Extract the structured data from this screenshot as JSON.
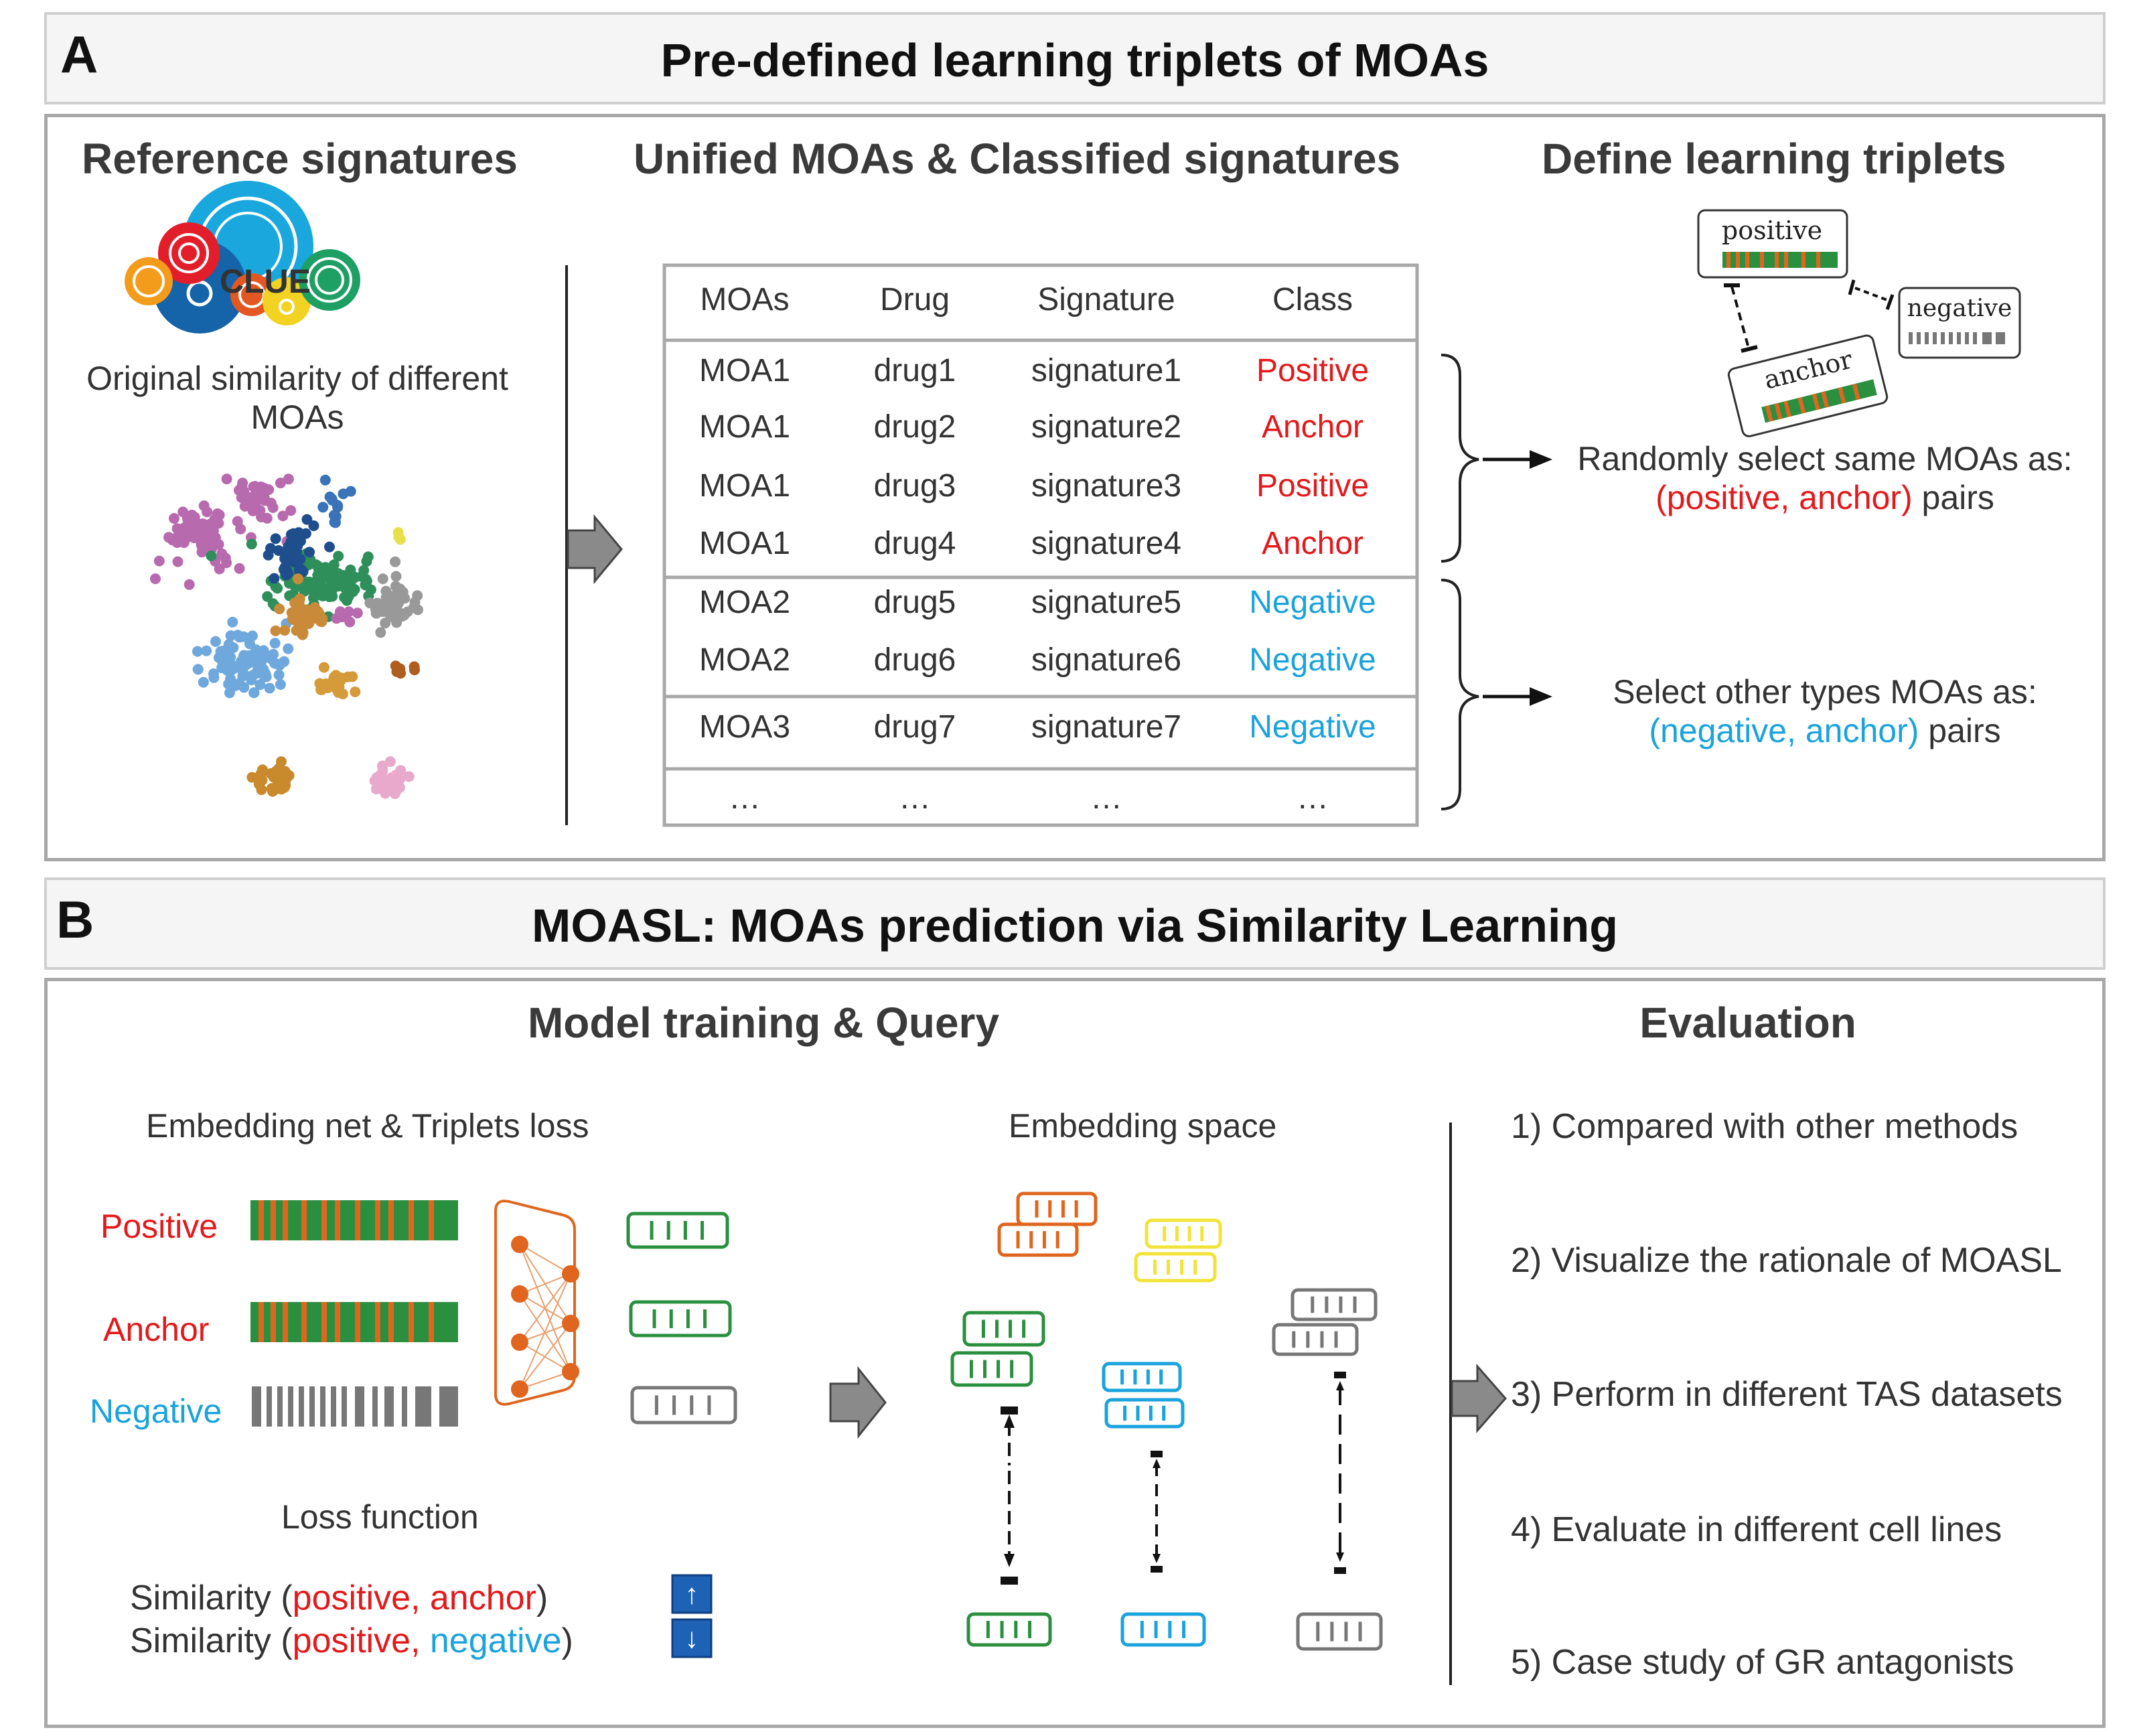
{
  "panel_a": {
    "letter": "A",
    "title": "Pre-defined learning triplets of MOAs",
    "reference": {
      "heading": "Reference signatures",
      "logo_text": "CLUE",
      "caption_line1": "Original similarity of different",
      "caption_line2": "MOAs"
    },
    "unified": {
      "heading": "Unified MOAs & Classified signatures",
      "headers": [
        "MOAs",
        "Drug",
        "Signature",
        "Class"
      ],
      "rows": [
        [
          "MOA1",
          "drug1",
          "signature1",
          "Positive"
        ],
        [
          "MOA1",
          "drug2",
          "signature2",
          "Anchor"
        ],
        [
          "MOA1",
          "drug3",
          "signature3",
          "Positive"
        ],
        [
          "MOA1",
          "drug4",
          "signature4",
          "Anchor"
        ],
        [
          "MOA2",
          "drug5",
          "signature5",
          "Negative"
        ],
        [
          "MOA2",
          "drug6",
          "signature6",
          "Negative"
        ],
        [
          "MOA3",
          "drug7",
          "signature7",
          "Negative"
        ],
        [
          "…",
          "…",
          "…",
          "…"
        ]
      ]
    },
    "define": {
      "heading": "Define learning triplets",
      "card_positive": "positive",
      "card_negative": "negative",
      "card_anchor": "anchor",
      "same_line1": "Randomly select same MOAs as:",
      "same_pair_a": "(positive,",
      "same_pair_b": "anchor)",
      "same_pair_suffix": "pairs",
      "other_line1": "Select other types MOAs as:",
      "other_pair_a": "(negative,",
      "other_pair_b": "anchor)",
      "other_pair_suffix": "pairs"
    }
  },
  "panel_b": {
    "letter": "B",
    "title": "MOASL: MOAs prediction via Similarity Learning",
    "training_heading": "Model training & Query",
    "evaluation_heading": "Evaluation",
    "embed_net_label": "Embedding net & Triplets loss",
    "embed_space_label": "Embedding space",
    "label_positive": "Positive",
    "label_anchor": "Anchor",
    "label_negative": "Negative",
    "loss_heading": "Loss function",
    "sim1_word": "Similarity",
    "sim1_a": "positive,",
    "sim1_b": "anchor",
    "sim1_arrow": "↑",
    "sim2_word": "Similarity",
    "sim2_a": "positive,",
    "sim2_b": "negative",
    "sim2_arrow": "↓",
    "evaluation_items": [
      "1) Compared with other methods",
      "2) Visualize the rationale of MOASL",
      "3) Perform in different TAS datasets",
      "4) Evaluate in different cell lines",
      "5) Case study of GR antagonists"
    ]
  },
  "colors": {
    "red": "#e3191c",
    "blue": "#1aa3dc",
    "green": "#2a9040",
    "orange": "#e0661f",
    "yellow": "#f2e33a",
    "gray": "#777777"
  }
}
